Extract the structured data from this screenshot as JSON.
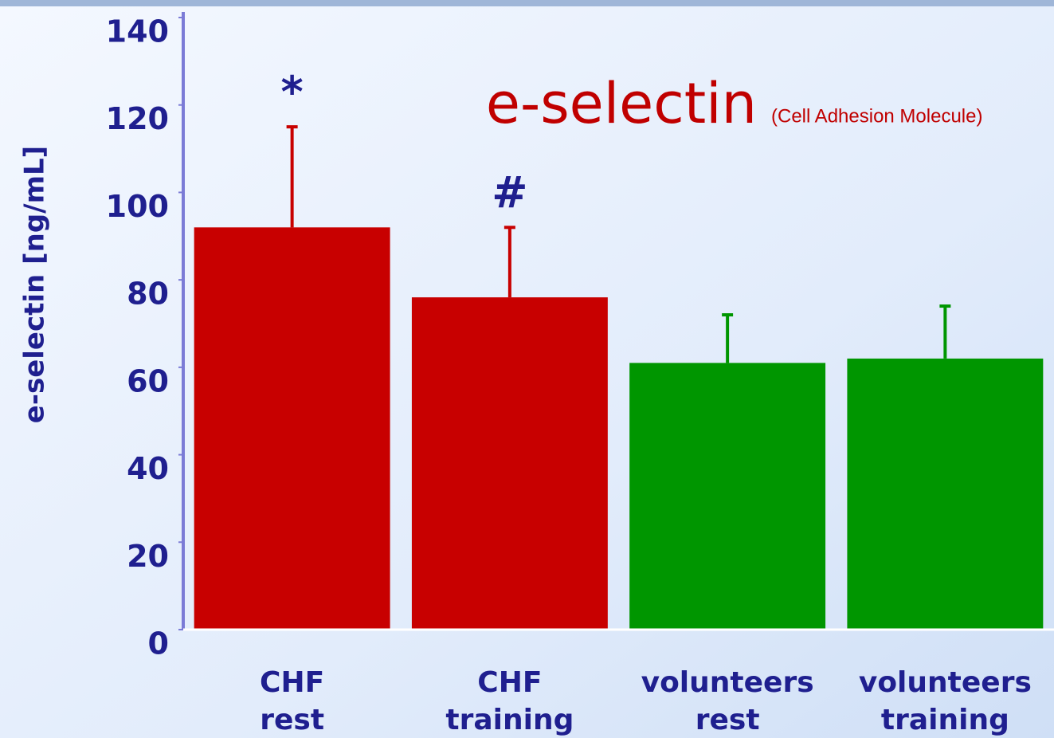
{
  "chart_data": {
    "type": "bar",
    "title": "e-selectin",
    "subtitle": "(Cell Adhesion Molecule)",
    "y_label": "e-selectin [ng/mL]",
    "categories": [
      [
        "CHF",
        "rest"
      ],
      [
        "CHF",
        "training"
      ],
      [
        "volunteers",
        "rest"
      ],
      [
        "volunteers",
        "training"
      ]
    ],
    "values": [
      92,
      76,
      61,
      62
    ],
    "errors": [
      23,
      16,
      11,
      12
    ],
    "colors": [
      "#c80000",
      "#c80000",
      "#009600",
      "#009600"
    ],
    "annotations": [
      "*",
      "#",
      null,
      null
    ],
    "ylim": [
      0,
      140
    ],
    "yticks": [
      0,
      20,
      40,
      60,
      80,
      100,
      120,
      140
    ],
    "grid": false
  }
}
